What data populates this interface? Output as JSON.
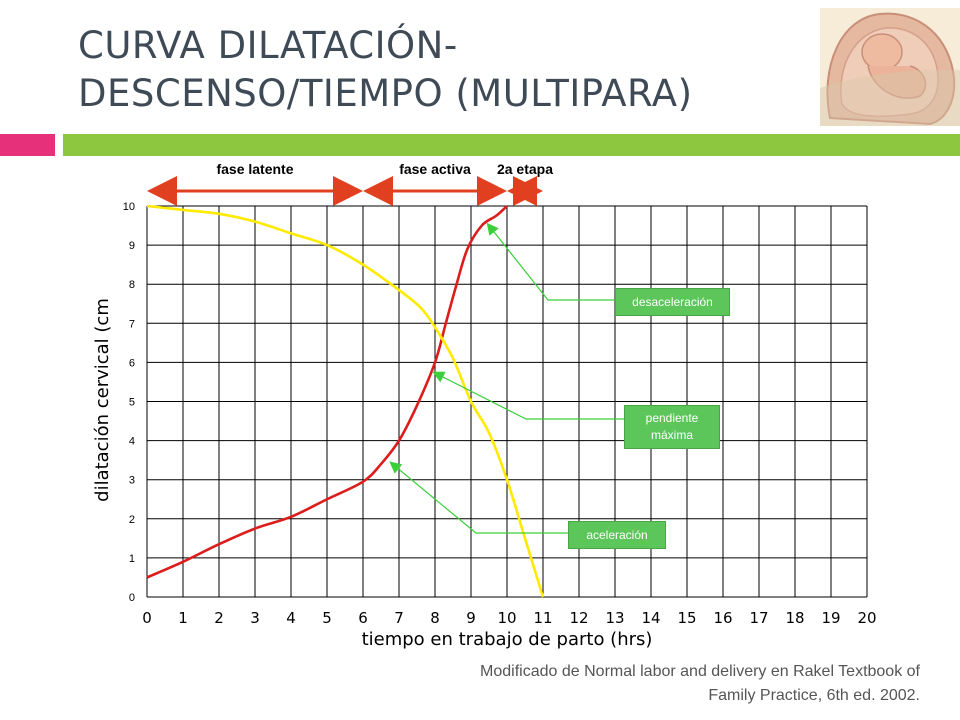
{
  "slide": {
    "title_line1": "CURVA DILATACIÓN-",
    "title_line2": "DESCENSO/TIEMPO (MULTIPARA)",
    "caption_line1": "Modificado de Normal labor and delivery en Rakel Textbook of",
    "caption_line2": "Family Practice, 6th ed. 2002."
  },
  "colors": {
    "dilation_curve": "#dd1c1c",
    "descent_curve": "#ffea00",
    "annotation": "#5cc65a",
    "arrow": "#e04020",
    "pink": "#e6307a",
    "green": "#8dc63f"
  },
  "phases": [
    {
      "label": "fase latente",
      "from": 0,
      "to": 6
    },
    {
      "label": "fase activa",
      "from": 6,
      "to": 10
    },
    {
      "label": "2a etapa",
      "from": 10,
      "to": 11
    }
  ],
  "annotations": [
    {
      "label": "desaceleración",
      "target": [
        9.4,
        9.6
      ]
    },
    {
      "label_line1": "pendiente",
      "label_line2": "máxima",
      "target": [
        7.9,
        5.8
      ]
    },
    {
      "label": "aceleración",
      "target": [
        6.7,
        3.5
      ]
    }
  ],
  "chart_data": {
    "type": "line",
    "xlabel": "tiempo en trabajo de parto (hrs)",
    "ylabel": "dilatación cervical (cm",
    "xlim": [
      0,
      20
    ],
    "ylim": [
      0,
      10
    ],
    "x_ticks": [
      "0",
      "1",
      "2",
      "3",
      "4",
      "5",
      "6",
      "7",
      "8",
      "9",
      "10",
      "11",
      "12",
      "13",
      "14",
      "15",
      "16",
      "17",
      "18",
      "19",
      "20"
    ],
    "y_ticks": [
      "0",
      "1",
      "2",
      "3",
      "4",
      "5",
      "6",
      "7",
      "8",
      "9",
      "10"
    ],
    "grid": true,
    "series": [
      {
        "color": "#dd1c1c",
        "points": [
          [
            0,
            0.5
          ],
          [
            1,
            0.9
          ],
          [
            2,
            1.35
          ],
          [
            3,
            1.75
          ],
          [
            4,
            2.05
          ],
          [
            5,
            2.5
          ],
          [
            6,
            2.95
          ],
          [
            6.5,
            3.4
          ],
          [
            7,
            4.0
          ],
          [
            7.5,
            4.9
          ],
          [
            8,
            6.0
          ],
          [
            8.3,
            7.0
          ],
          [
            8.6,
            8.0
          ],
          [
            8.9,
            8.9
          ],
          [
            9.3,
            9.5
          ],
          [
            9.7,
            9.75
          ],
          [
            10,
            10
          ]
        ]
      },
      {
        "color": "#ffea00",
        "points": [
          [
            0,
            10
          ],
          [
            1,
            9.9
          ],
          [
            2,
            9.8
          ],
          [
            3,
            9.6
          ],
          [
            4,
            9.3
          ],
          [
            5,
            9.0
          ],
          [
            6,
            8.5
          ],
          [
            7,
            7.85
          ],
          [
            7.6,
            7.4
          ],
          [
            8,
            6.9
          ],
          [
            8.5,
            6.1
          ],
          [
            9,
            5.0
          ],
          [
            9.5,
            4.2
          ],
          [
            10,
            3.0
          ],
          [
            10.5,
            1.5
          ],
          [
            11,
            0
          ]
        ]
      }
    ]
  }
}
